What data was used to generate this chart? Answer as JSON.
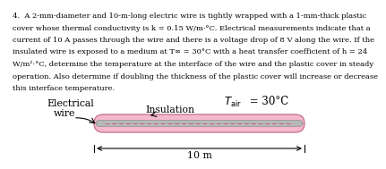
{
  "problem_text_lines": [
    "4.  A 2-mm-diameter and 10-m-long electric wire is tightly wrapped with a 1-mm-thick plastic",
    "cover whose thermal conductivity is k = 0.15 W/m·°C. Electrical measurements indicate that a",
    "current of 10 A passes through the wire and there is a voltage drop of 8 V along the wire. If the",
    "insulated wire is exposed to a medium at T∞ = 30°C with a heat transfer coefficient of h = 24",
    "W/m²·°C, determine the temperature at the interface of the wire and the plastic cover in steady",
    "operation. Also determine if doubling the thickness of the plastic cover will increase or decrease",
    "this interface temperature."
  ],
  "label_electrical": "Electrical",
  "label_wire": "wire",
  "label_insulation": "Insulation",
  "label_length": "10 m",
  "wire_color": "#b8b8b8",
  "insulation_fill": "#f5b8cc",
  "insulation_edge": "#c8789a",
  "dashed_color": "#c06080",
  "background_color": "#ffffff",
  "text_color": "#000000",
  "font_size_problem": 6.0,
  "font_size_diagram": 7.8,
  "font_size_tair": 8.5
}
